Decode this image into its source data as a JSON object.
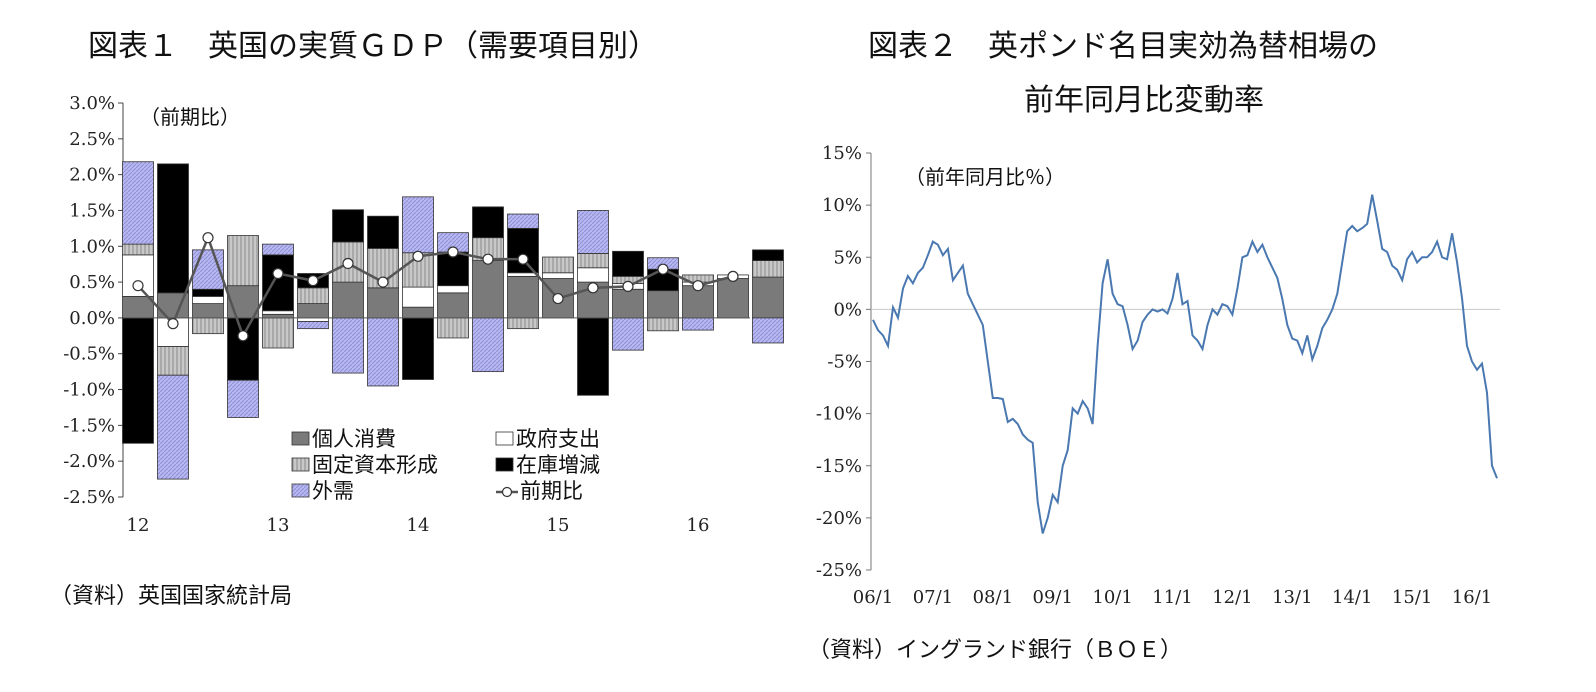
{
  "fig1": {
    "title": "図表１　英国の実質ＧＤＰ（需要項目別）",
    "unit_note": "（前期比）",
    "source": "（資料）英国国家統計局",
    "legend": {
      "consumption": "個人消費",
      "government": "政府支出",
      "investment": "固定資本形成",
      "inventory": "在庫増減",
      "net_exports": "外需",
      "total": "前期比"
    },
    "colors": {
      "consumption": "#7a7a7a",
      "government": "#ffffff",
      "investment": "#c8c8c8",
      "inventory": "#000000",
      "net_exports": "#b8b8f0",
      "line": "#555555"
    }
  },
  "fig2": {
    "title_line1": "図表２　英ポンド名目実効為替相場の",
    "title_line2": "前年同月比変動率",
    "unit_note": "（前年同月比％）",
    "source": "（資料）イングランド銀行（ＢＯＥ）",
    "line_color": "#4a78b0"
  },
  "chart_data": [
    {
      "type": "bar",
      "stacked": true,
      "ylim": [
        -2.5,
        3.0
      ],
      "y_ticks": [
        "3.0%",
        "2.5%",
        "2.0%",
        "1.5%",
        "1.0%",
        "0.5%",
        "0.0%",
        "-0.5%",
        "-1.0%",
        "-1.5%",
        "-2.0%",
        "-2.5%"
      ],
      "x_labels": [
        "12",
        "13",
        "14",
        "15",
        "16"
      ],
      "x_label_quarters": [
        0,
        4,
        8,
        12,
        16
      ],
      "categories": [
        "12Q1",
        "12Q2",
        "12Q3",
        "12Q4",
        "13Q1",
        "13Q2",
        "13Q3",
        "13Q4",
        "14Q1",
        "14Q2",
        "14Q3",
        "14Q4",
        "15Q1",
        "15Q2",
        "15Q3",
        "15Q4",
        "16Q1",
        "16Q2",
        "16Q3"
      ],
      "series": [
        {
          "key": "consumption",
          "name": "個人消費",
          "values": [
            0.3,
            0.35,
            0.2,
            0.45,
            0.05,
            0.2,
            0.5,
            0.42,
            0.15,
            0.35,
            0.8,
            0.58,
            0.55,
            0.5,
            0.4,
            0.38,
            0.45,
            0.55,
            0.57
          ]
        },
        {
          "key": "government",
          "name": "政府支出",
          "values": [
            0.58,
            -0.4,
            0.1,
            0.0,
            0.05,
            -0.05,
            0.0,
            0.0,
            0.28,
            0.1,
            0.0,
            0.05,
            0.08,
            0.2,
            0.08,
            0.0,
            0.05,
            0.05,
            0.0
          ]
        },
        {
          "key": "investment",
          "name": "固定資本形成",
          "values": [
            0.15,
            -0.4,
            -0.22,
            0.7,
            -0.42,
            0.22,
            0.56,
            0.55,
            0.48,
            -0.28,
            0.32,
            -0.15,
            0.22,
            0.2,
            0.1,
            -0.18,
            0.1,
            0.0,
            0.23
          ]
        },
        {
          "key": "inventory",
          "name": "在庫増減",
          "values": [
            -1.75,
            1.8,
            0.1,
            -0.87,
            0.78,
            0.2,
            0.45,
            0.45,
            -0.86,
            0.47,
            0.43,
            0.62,
            0.0,
            -1.08,
            0.35,
            0.3,
            0.0,
            0.0,
            0.15
          ]
        },
        {
          "key": "net_exports",
          "name": "外需",
          "values": [
            1.15,
            -1.45,
            0.55,
            -0.52,
            0.15,
            -0.1,
            -0.77,
            -0.95,
            0.78,
            0.27,
            -0.75,
            0.2,
            0.0,
            0.6,
            -0.45,
            0.16,
            -0.17,
            0.0,
            -0.35
          ]
        }
      ],
      "line": {
        "name": "前期比",
        "values": [
          0.45,
          -0.08,
          1.12,
          -0.25,
          0.62,
          0.52,
          0.76,
          0.5,
          0.86,
          0.92,
          0.82,
          0.82,
          0.27,
          0.42,
          0.44,
          0.68,
          0.45,
          0.58,
          null
        ]
      }
    },
    {
      "type": "line",
      "ylim": [
        -25,
        15
      ],
      "y_ticks": [
        "15%",
        "10%",
        "5%",
        "0%",
        "-5%",
        "-10%",
        "-15%",
        "-20%",
        "-25%"
      ],
      "x_labels": [
        "06/1",
        "07/1",
        "08/1",
        "09/1",
        "10/1",
        "11/1",
        "12/1",
        "13/1",
        "14/1",
        "15/1",
        "16/1"
      ],
      "series": [
        {
          "values": [
            -1.0,
            -2.0,
            -2.5,
            -3.5,
            0.2,
            -0.8,
            2.0,
            3.2,
            2.5,
            3.5,
            4.0,
            5.2,
            6.5,
            6.2,
            5.2,
            5.8,
            2.8,
            3.5,
            4.2,
            1.5,
            0.5,
            -0.5,
            -1.5,
            -5.0,
            -8.5,
            -8.5,
            -8.6,
            -10.8,
            -10.5,
            -11.0,
            -12.0,
            -12.5,
            -12.8,
            -18.5,
            -21.5,
            -20.0,
            -17.8,
            -18.5,
            -15.0,
            -13.5,
            -9.5,
            -10.0,
            -8.8,
            -9.5,
            -11.0,
            -3.5,
            2.5,
            4.8,
            1.5,
            0.5,
            0.3,
            -1.5,
            -3.8,
            -3.0,
            -1.2,
            -0.5,
            0.0,
            -0.2,
            0.0,
            -0.4,
            1.0,
            3.5,
            0.5,
            0.8,
            -2.5,
            -3.0,
            -3.8,
            -1.5,
            0.0,
            -0.5,
            0.5,
            0.3,
            -0.5,
            2.0,
            5.0,
            5.2,
            6.5,
            5.5,
            6.2,
            5.0,
            4.0,
            3.0,
            1.0,
            -1.5,
            -2.8,
            -3.0,
            -4.2,
            -2.5,
            -4.8,
            -3.5,
            -1.8,
            -1.0,
            0.0,
            1.5,
            4.5,
            7.5,
            8.0,
            7.5,
            7.8,
            8.2,
            11.0,
            8.5,
            5.8,
            5.5,
            4.2,
            3.8,
            2.8,
            4.8,
            5.5,
            4.5,
            5.0,
            5.0,
            5.5,
            6.5,
            5.0,
            4.8,
            7.3,
            4.5,
            1.0,
            -3.5,
            -5.0,
            -5.8,
            -5.2,
            -8.0,
            -15.0,
            -16.2
          ]
        }
      ]
    }
  ]
}
